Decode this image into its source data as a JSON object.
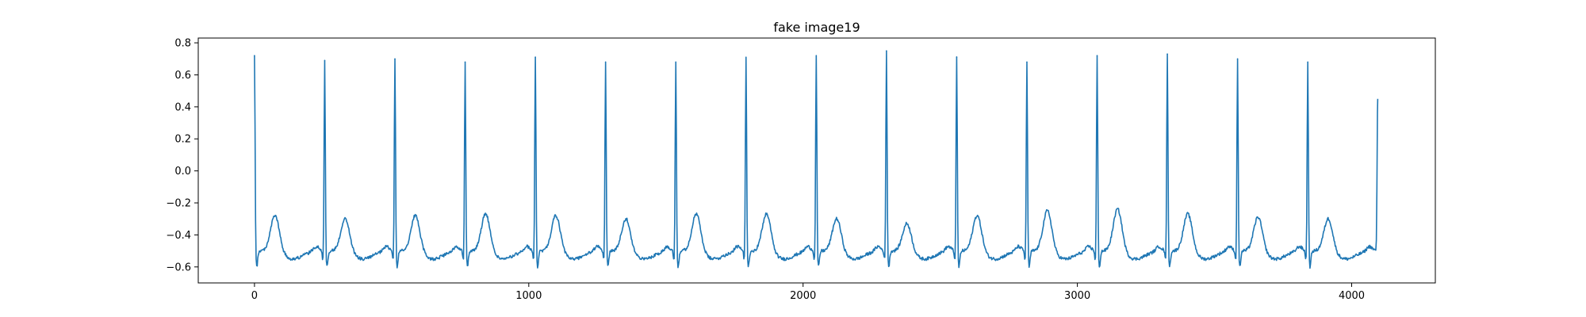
{
  "chart_data": {
    "type": "line",
    "title": "fake image19",
    "xlabel": "",
    "ylabel": "",
    "xlim": [
      -205,
      4305
    ],
    "ylim": [
      -0.7,
      0.83
    ],
    "xticks": [
      0,
      1000,
      2000,
      3000,
      4000
    ],
    "xtick_labels": [
      "0",
      "1000",
      "2000",
      "3000",
      "4000"
    ],
    "yticks": [
      -0.6,
      -0.4,
      -0.2,
      0.0,
      0.2,
      0.4,
      0.6,
      0.8
    ],
    "ytick_labels": [
      "−0.6",
      "−0.4",
      "−0.2",
      "0.0",
      "0.2",
      "0.4",
      "0.6",
      "0.8"
    ],
    "grid": false,
    "legend": "none",
    "color": "#1f77b4",
    "r_peaks": [
      {
        "x": 0,
        "y": 0.72
      },
      {
        "x": 256,
        "y": 0.69
      },
      {
        "x": 512,
        "y": 0.7
      },
      {
        "x": 768,
        "y": 0.68
      },
      {
        "x": 1024,
        "y": 0.71
      },
      {
        "x": 1280,
        "y": 0.68
      },
      {
        "x": 1536,
        "y": 0.68
      },
      {
        "x": 1792,
        "y": 0.71
      },
      {
        "x": 2048,
        "y": 0.72
      },
      {
        "x": 2304,
        "y": 0.75
      },
      {
        "x": 2560,
        "y": 0.71
      },
      {
        "x": 2816,
        "y": 0.68
      },
      {
        "x": 3072,
        "y": 0.72
      },
      {
        "x": 3328,
        "y": 0.73
      },
      {
        "x": 3584,
        "y": 0.7
      },
      {
        "x": 3840,
        "y": 0.68
      }
    ],
    "t_wave_peaks": [
      -0.27,
      -0.29,
      -0.27,
      -0.26,
      -0.27,
      -0.29,
      -0.26,
      -0.26,
      -0.29,
      -0.32,
      -0.27,
      -0.24,
      -0.23,
      -0.26,
      -0.28,
      -0.29
    ],
    "baseline": -0.5,
    "s_trough": -0.6,
    "end_point": {
      "x": 4095,
      "y": 0.45
    }
  }
}
